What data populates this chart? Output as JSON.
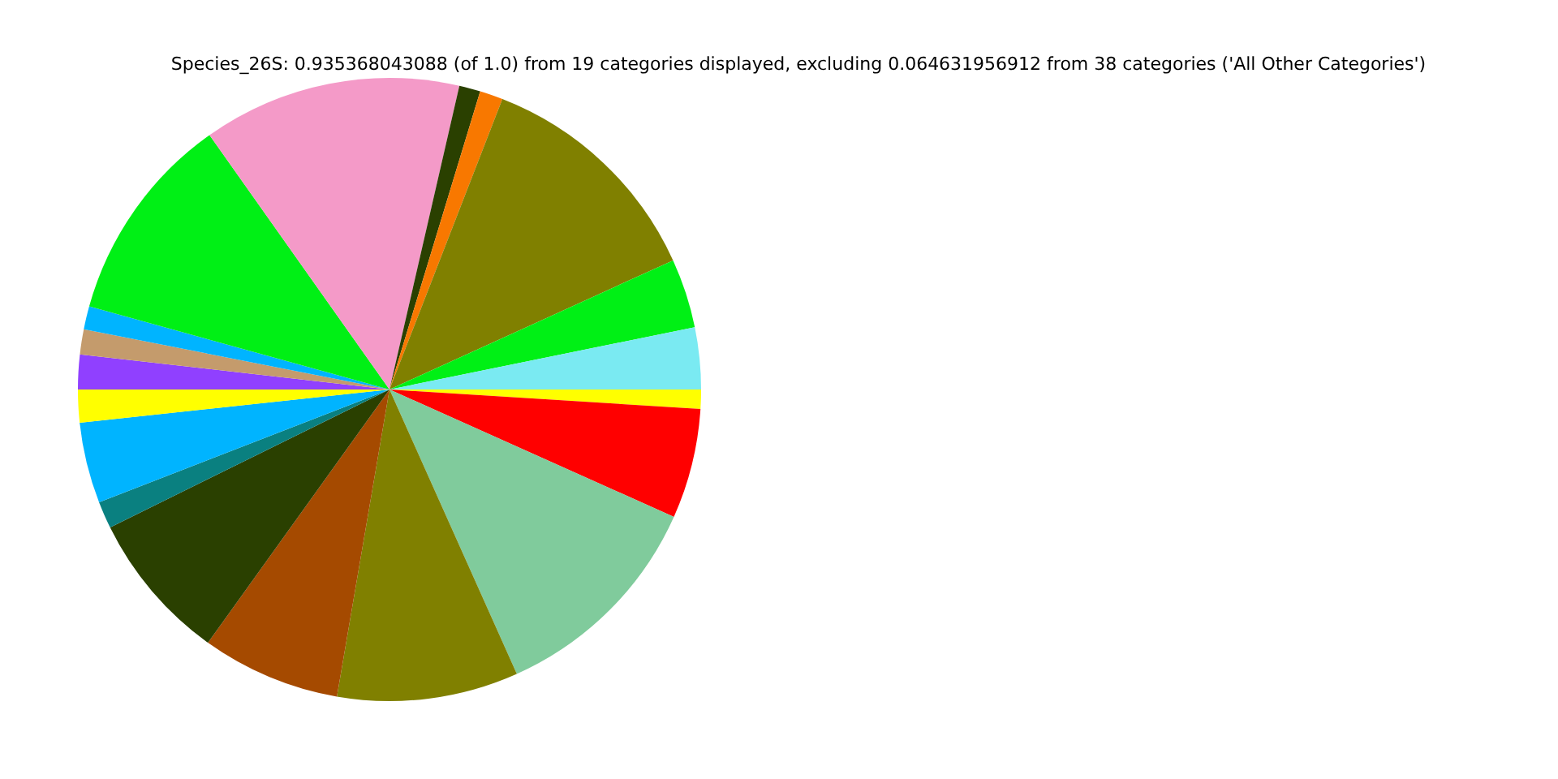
{
  "chart_data": {
    "type": "pie",
    "title": "Species_26S: 0.935368043088 (of 1.0) from 19 categories displayed, excluding 0.064631956912 from 38 categories ('All Other Categories')",
    "categories": [
      null,
      null,
      null,
      null,
      null,
      null,
      null,
      null,
      null,
      null,
      null,
      null,
      null,
      null,
      null,
      null,
      null,
      null,
      null
    ],
    "values": [
      1.0,
      5.7,
      11.6,
      9.4,
      7.2,
      7.8,
      1.4,
      4.2,
      1.7,
      1.8,
      1.3,
      1.2,
      10.9,
      13.4,
      1.1,
      1.2,
      12.3,
      3.6,
      3.2
    ],
    "colors": [
      "#ffff00",
      "#ff0000",
      "#80cb9c",
      "#808000",
      "#a54a00",
      "#2a4000",
      "#0a8080",
      "#00b4ff",
      "#ffff00",
      "#9040ff",
      "#c49b6c",
      "#00b4ff",
      "#00f015",
      "#f49ac8",
      "#2a4000",
      "#f87800",
      "#808000",
      "#00f015",
      "#7aeaf2"
    ],
    "legend": false
  }
}
